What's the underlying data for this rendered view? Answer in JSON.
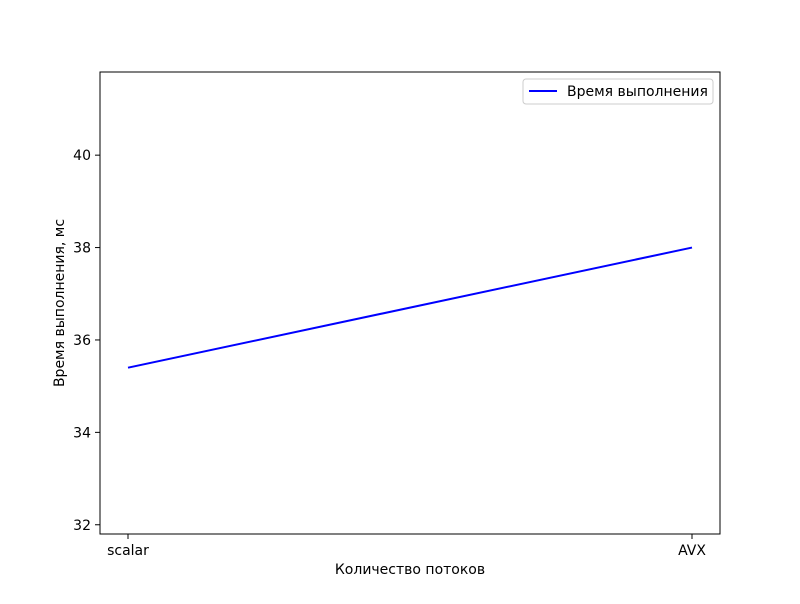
{
  "chart_data": {
    "type": "line",
    "title": "",
    "xlabel": "Количество потоков",
    "ylabel": "Время выполнения, мс",
    "categories": [
      "scalar",
      "AVX"
    ],
    "ylim": [
      31.8,
      41.8
    ],
    "yticks": [
      32,
      34,
      36,
      38,
      40
    ],
    "ytick_labels": [
      "32",
      "34",
      "36",
      "38",
      "40"
    ],
    "grid": false,
    "legend_position": "top-right",
    "series": [
      {
        "name": "Время выполнения",
        "values": [
          35.4,
          38.0
        ],
        "color": "#0000ff"
      }
    ]
  }
}
